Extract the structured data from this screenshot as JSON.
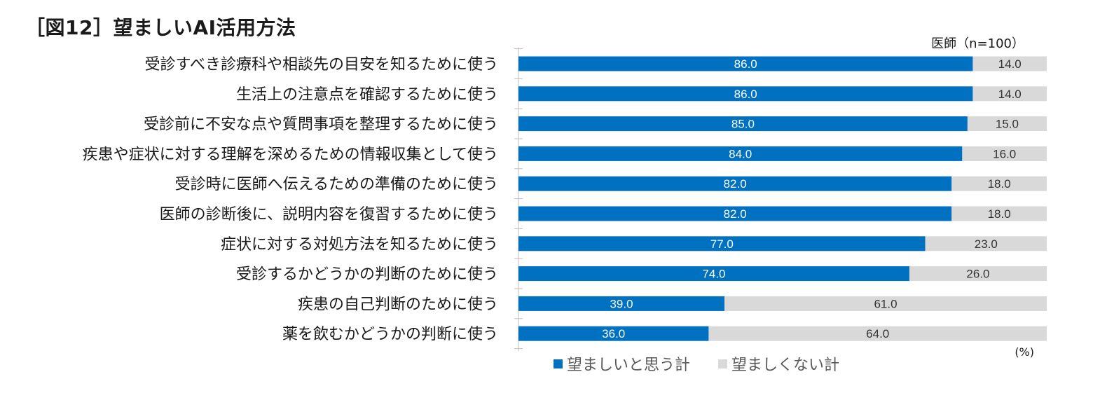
{
  "title": "［図12］望ましいAI活用方法",
  "sample": "医師（n=100）",
  "unit": "(%)",
  "colors": {
    "positive": "#0070C0",
    "negative": "#D9D9D9",
    "axis": "#BFBFBF"
  },
  "chart_data": {
    "type": "bar",
    "orientation": "horizontal",
    "stacked": true,
    "categories": [
      "受診すべき診療科や相談先の目安を知るために使う",
      "生活上の注意点を確認するために使う",
      "受診前に不安な点や質問事項を整理するために使う",
      "疾患や症状に対する理解を深めるための情報収集として使う",
      "受診時に医師へ伝えるための準備のために使う",
      "医師の診断後に、説明内容を復習するために使う",
      "症状に対する対処方法を知るために使う",
      "受診するかどうかの判断のために使う",
      "疾患の自己判断のために使う",
      "薬を飲むかどうかの判断に使う"
    ],
    "series": [
      {
        "name": "望ましいと思う計",
        "color": "#0070C0",
        "values": [
          86.0,
          86.0,
          85.0,
          84.0,
          82.0,
          82.0,
          77.0,
          74.0,
          39.0,
          36.0
        ],
        "labels": [
          "86.0",
          "86.0",
          "85.0",
          "84.0",
          "82.0",
          "82.0",
          "77.0",
          "74.0",
          "39.0",
          "36.0"
        ]
      },
      {
        "name": "望ましくない計",
        "color": "#D9D9D9",
        "values": [
          14.0,
          14.0,
          15.0,
          16.0,
          18.0,
          18.0,
          23.0,
          26.0,
          61.0,
          64.0
        ],
        "labels": [
          "14.0",
          "14.0",
          "15.0",
          "16.0",
          "18.0",
          "18.0",
          "23.0",
          "26.0",
          "61.0",
          "64.0"
        ]
      }
    ],
    "xlim": [
      0,
      100
    ],
    "grid": false,
    "legend_position": "bottom"
  }
}
